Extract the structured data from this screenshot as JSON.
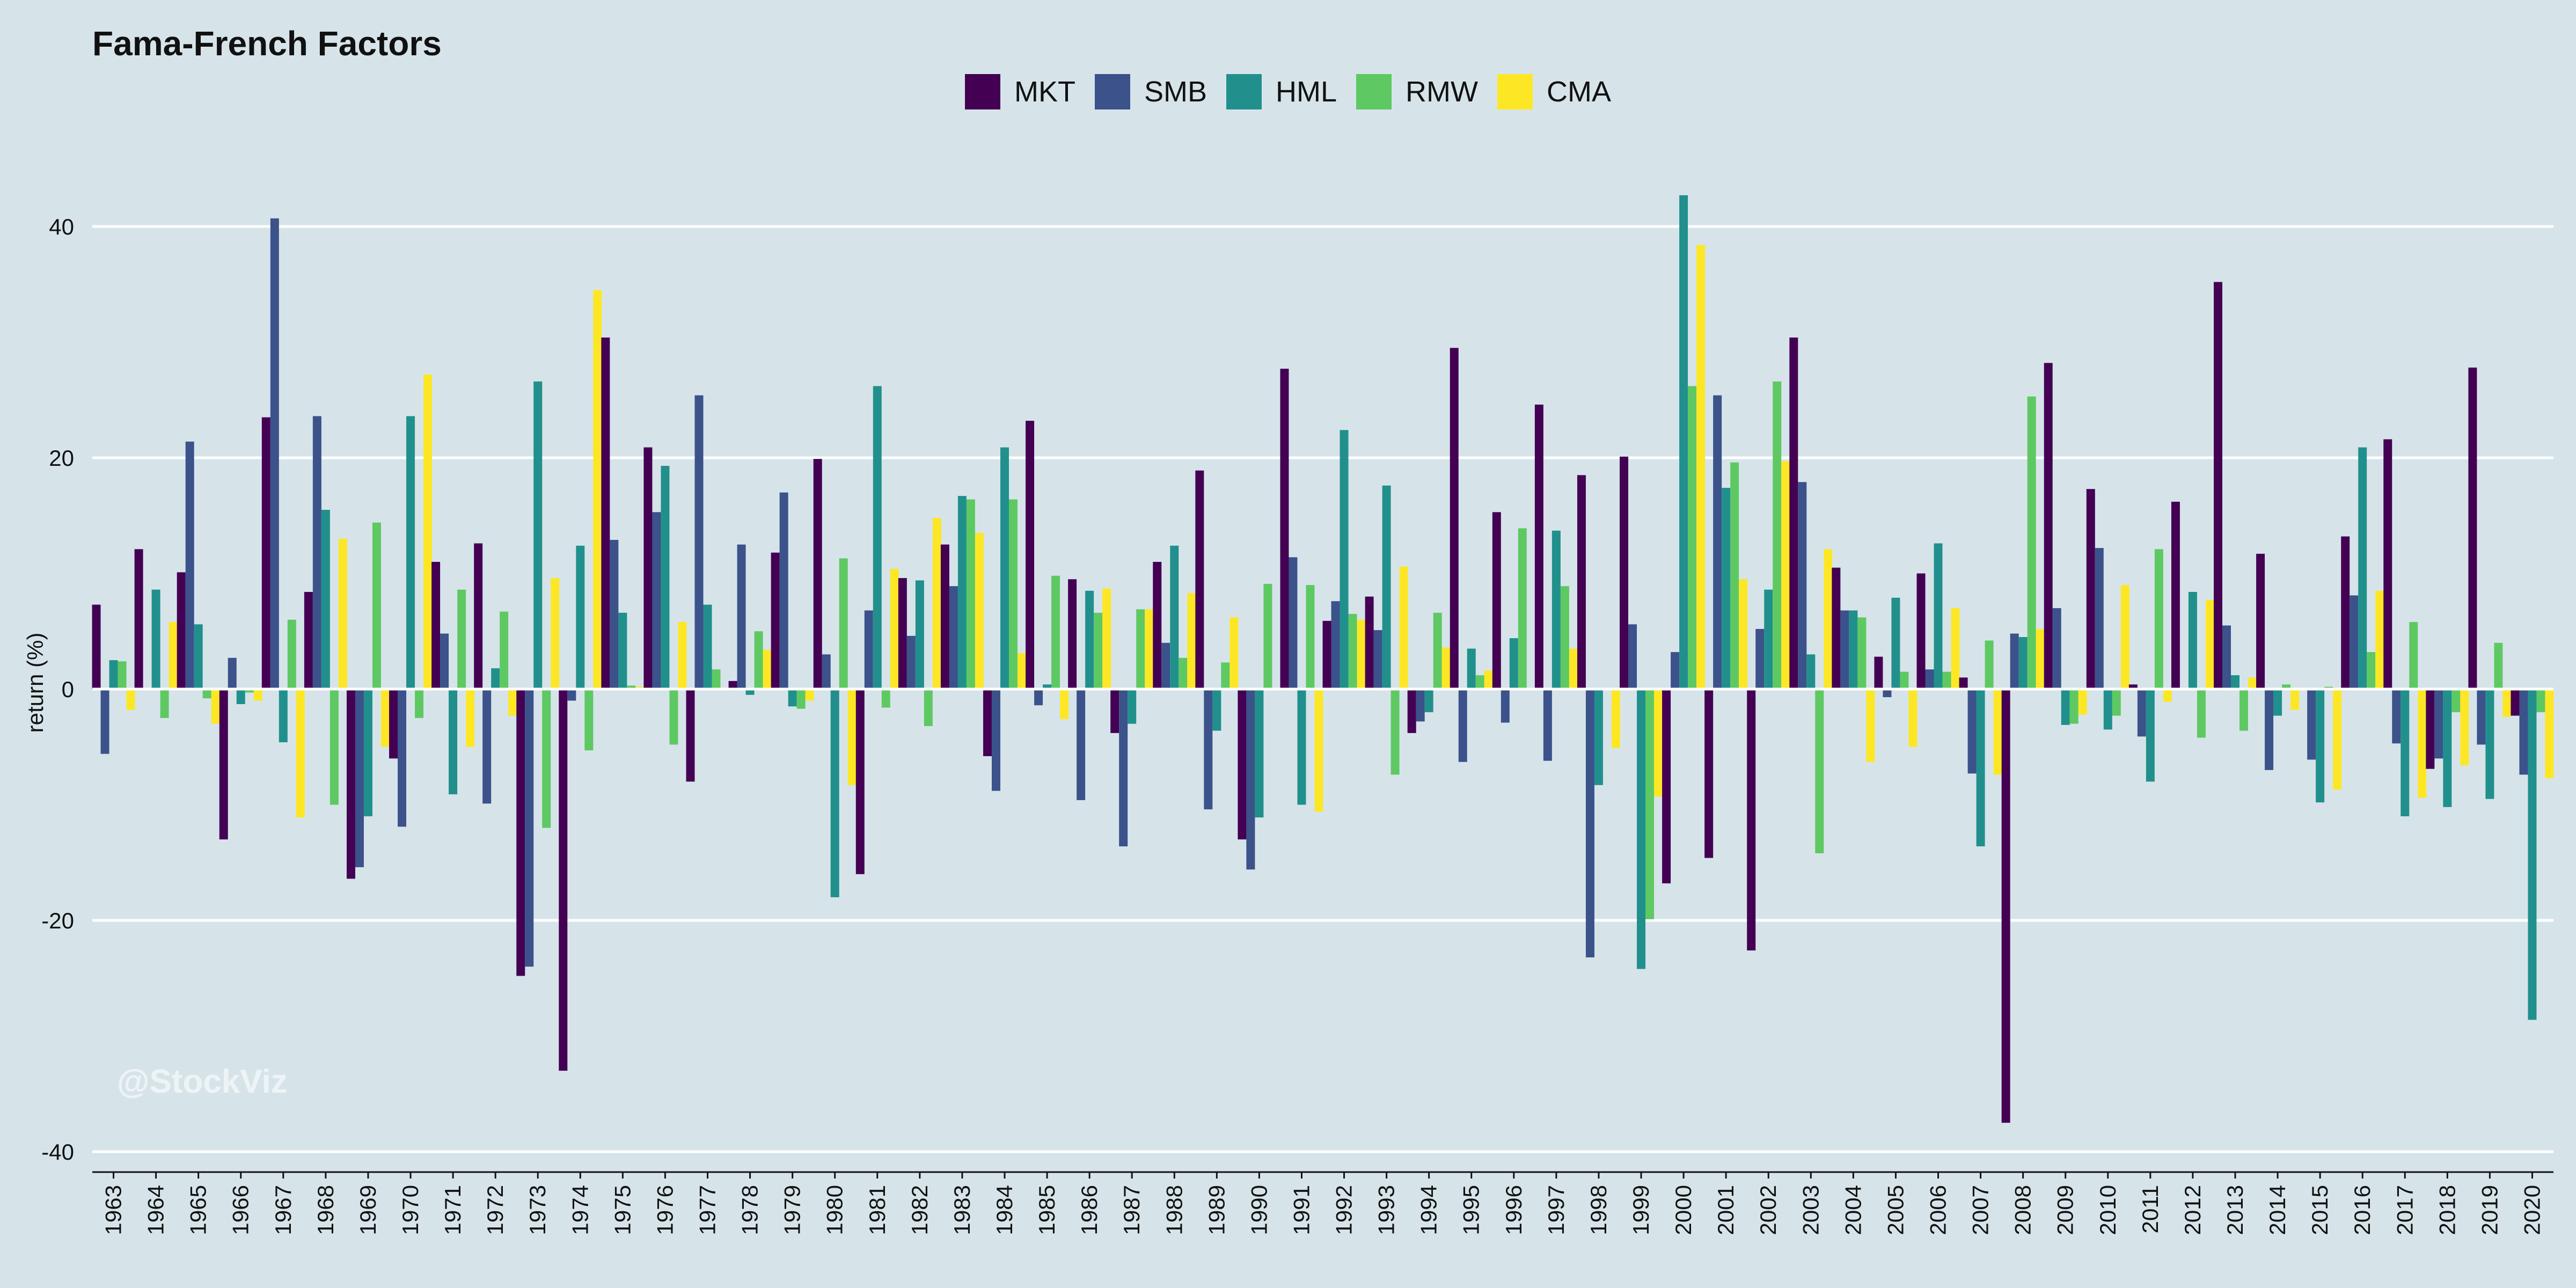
{
  "chart_data": {
    "type": "bar",
    "title": "Fama-French Factors",
    "ylabel": "return (%)",
    "xlabel": "",
    "ylim": [
      -40,
      45
    ],
    "yticks": [
      -40,
      -20,
      0,
      20,
      40
    ],
    "grid": true,
    "legend_position": "top-center",
    "watermark": "@StockViz",
    "categories": [
      "1963",
      "1964",
      "1965",
      "1966",
      "1967",
      "1968",
      "1969",
      "1970",
      "1971",
      "1972",
      "1973",
      "1974",
      "1975",
      "1976",
      "1977",
      "1978",
      "1979",
      "1980",
      "1981",
      "1982",
      "1983",
      "1984",
      "1985",
      "1986",
      "1987",
      "1988",
      "1989",
      "1990",
      "1991",
      "1992",
      "1993",
      "1994",
      "1995",
      "1996",
      "1997",
      "1998",
      "1999",
      "2000",
      "2001",
      "2002",
      "2003",
      "2004",
      "2005",
      "2006",
      "2007",
      "2008",
      "2009",
      "2010",
      "2011",
      "2012",
      "2013",
      "2014",
      "2015",
      "2016",
      "2017",
      "2018",
      "2019",
      "2020"
    ],
    "series": [
      {
        "name": "MKT",
        "color": "#440154",
        "values": [
          7.3,
          12.1,
          10.1,
          -13.0,
          23.5,
          8.4,
          -16.4,
          -6.0,
          11.0,
          12.6,
          -24.8,
          -33.0,
          30.4,
          20.9,
          -8.0,
          0.7,
          11.8,
          19.9,
          -16.0,
          9.6,
          12.5,
          -5.8,
          23.2,
          9.5,
          -3.8,
          11.0,
          18.9,
          -13.0,
          27.7,
          5.9,
          8.0,
          -3.8,
          29.5,
          15.3,
          24.6,
          18.5,
          20.1,
          -16.8,
          -14.6,
          -22.6,
          30.4,
          10.5,
          2.8,
          10.0,
          1.0,
          -37.5,
          28.2,
          17.3,
          0.4,
          16.2,
          35.2,
          11.7,
          0.1,
          13.2,
          21.6,
          -6.9,
          27.8,
          -2.3
        ]
      },
      {
        "name": "SMB",
        "color": "#3b528b",
        "values": [
          -5.6,
          0.0,
          21.4,
          2.7,
          40.7,
          23.6,
          -15.4,
          -11.9,
          4.8,
          -9.9,
          -24.0,
          -1.0,
          12.9,
          15.3,
          25.4,
          12.5,
          17.0,
          3.0,
          6.8,
          4.6,
          8.9,
          -8.8,
          -1.4,
          -9.6,
          -13.6,
          4.0,
          -10.4,
          -15.6,
          11.4,
          7.6,
          5.1,
          -2.8,
          -6.3,
          -2.9,
          -6.2,
          -23.2,
          5.6,
          3.2,
          25.4,
          5.2,
          17.9,
          6.8,
          -0.7,
          1.7,
          -7.3,
          4.8,
          7.0,
          12.2,
          -4.1,
          0.0,
          5.5,
          -7.0,
          -6.1,
          8.1,
          -4.7,
          -6.0,
          -4.8,
          -7.4
        ]
      },
      {
        "name": "HML",
        "color": "#21908c",
        "values": [
          2.5,
          8.6,
          5.6,
          -1.3,
          -4.6,
          15.5,
          -11.0,
          23.6,
          -9.1,
          1.8,
          26.6,
          12.4,
          6.6,
          19.3,
          7.3,
          -0.5,
          -1.5,
          -18.0,
          26.2,
          9.4,
          16.7,
          20.9,
          0.4,
          8.5,
          -3.0,
          12.4,
          -3.6,
          -11.1,
          -10.0,
          22.4,
          17.6,
          -2.0,
          3.5,
          4.4,
          13.7,
          -8.3,
          -24.2,
          42.7,
          17.4,
          8.6,
          3.0,
          6.8,
          7.9,
          12.6,
          -13.6,
          4.5,
          -3.1,
          -3.5,
          -8.0,
          8.4,
          1.2,
          -2.3,
          -9.8,
          20.9,
          -11.0,
          -10.2,
          -9.5,
          -28.6
        ]
      },
      {
        "name": "RMW",
        "color": "#5ec962",
        "values": [
          2.4,
          -2.5,
          -0.8,
          -0.3,
          6.0,
          -10.0,
          14.4,
          -2.5,
          8.6,
          6.7,
          -12.0,
          -5.3,
          0.3,
          -4.8,
          1.7,
          5.0,
          -1.7,
          11.3,
          -1.6,
          -3.2,
          16.4,
          16.4,
          9.8,
          6.6,
          6.9,
          2.7,
          2.3,
          9.1,
          9.0,
          6.5,
          -7.4,
          6.6,
          1.2,
          13.9,
          8.9,
          -0.1,
          -19.9,
          26.2,
          19.6,
          26.6,
          -14.2,
          6.2,
          1.5,
          1.5,
          4.2,
          25.3,
          -3.0,
          -2.3,
          12.1,
          -4.2,
          -3.6,
          0.4,
          0.2,
          3.2,
          5.8,
          -2.0,
          4.0,
          -2.0
        ]
      },
      {
        "name": "CMA",
        "color": "#fde725",
        "values": [
          -1.8,
          5.8,
          -3.0,
          -1.0,
          -11.1,
          13.0,
          -5.0,
          27.2,
          -5.0,
          -2.3,
          9.6,
          34.5,
          0.2,
          5.8,
          0.0,
          3.4,
          -1.0,
          -8.3,
          10.4,
          14.8,
          13.5,
          3.1,
          -2.6,
          8.7,
          6.9,
          8.3,
          6.2,
          0.0,
          -10.6,
          6.0,
          10.6,
          3.6,
          1.6,
          0.0,
          3.5,
          -5.1,
          -9.3,
          38.4,
          9.5,
          19.7,
          12.1,
          -6.3,
          -5.0,
          7.0,
          -7.4,
          5.2,
          -2.2,
          9.0,
          -1.1,
          7.7,
          1.0,
          -1.8,
          -8.7,
          8.5,
          -9.4,
          -6.6,
          -2.4,
          -7.7
        ]
      }
    ]
  }
}
